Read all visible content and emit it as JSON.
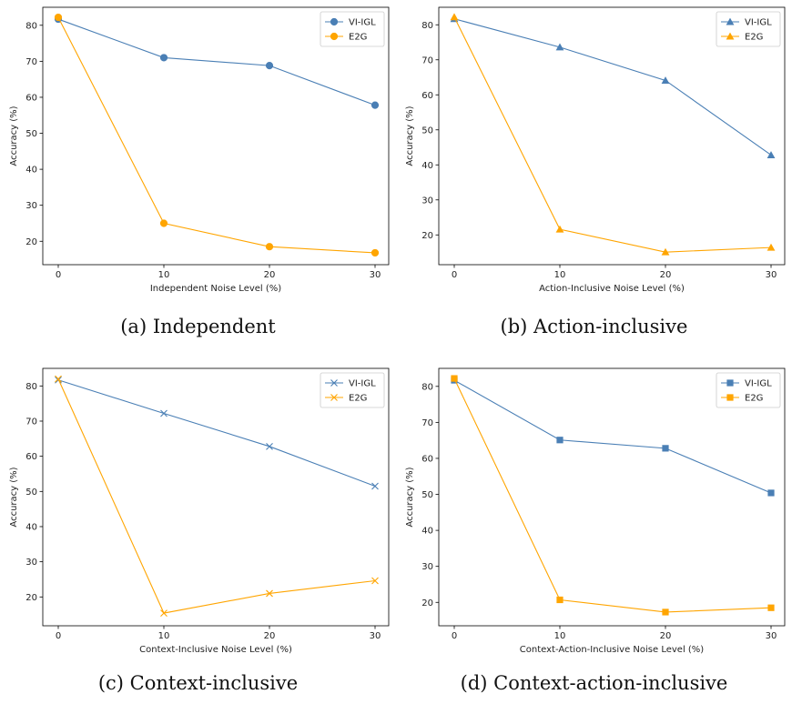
{
  "chart_data": [
    {
      "type": "line",
      "caption": "(a) Independent",
      "xlabel": "Independent Noise Level (%)",
      "ylabel": "Accuracy (%)",
      "x": [
        0,
        10,
        20,
        30
      ],
      "xticks": [
        "0",
        "10",
        "20",
        "30"
      ],
      "yticks": [
        "20",
        "30",
        "40",
        "50",
        "60",
        "70",
        "80"
      ],
      "ylim": [
        13.5,
        85
      ],
      "marker": "circle",
      "legend_position": "top-right",
      "series": [
        {
          "name": "VI-IGL",
          "color": "#4a7fb5",
          "values": [
            81.7,
            71.0,
            68.8,
            57.8
          ]
        },
        {
          "name": "E2G",
          "color": "#ffa500",
          "values": [
            82.2,
            25.0,
            18.5,
            16.8
          ]
        }
      ]
    },
    {
      "type": "line",
      "caption": "(b) Action-inclusive",
      "xlabel": "Action-Inclusive Noise Level (%)",
      "ylabel": "Accuracy (%)",
      "x": [
        0,
        10,
        20,
        30
      ],
      "xticks": [
        "0",
        "10",
        "20",
        "30"
      ],
      "yticks": [
        "20",
        "30",
        "40",
        "50",
        "60",
        "70",
        "80"
      ],
      "ylim": [
        11.5,
        85
      ],
      "marker": "triangle",
      "legend_position": "top-right",
      "series": [
        {
          "name": "VI-IGL",
          "color": "#4a7fb5",
          "values": [
            81.7,
            73.6,
            64.1,
            42.8
          ]
        },
        {
          "name": "E2G",
          "color": "#ffa500",
          "values": [
            82.2,
            21.6,
            15.1,
            16.4
          ]
        }
      ]
    },
    {
      "type": "line",
      "caption": "(c) Context-inclusive",
      "xlabel": "Context-Inclusive Noise Level (%)",
      "ylabel": "Accuracy (%)",
      "x": [
        0,
        10,
        20,
        30
      ],
      "xticks": [
        "0",
        "10",
        "20",
        "30"
      ],
      "yticks": [
        "20",
        "30",
        "40",
        "50",
        "60",
        "70",
        "80"
      ],
      "ylim": [
        11.8,
        85
      ],
      "marker": "x",
      "legend_position": "top-right",
      "series": [
        {
          "name": "VI-IGL",
          "color": "#4a7fb5",
          "values": [
            81.7,
            72.2,
            62.8,
            51.5
          ]
        },
        {
          "name": "E2G",
          "color": "#ffa500",
          "values": [
            82.0,
            15.4,
            21.0,
            24.6
          ]
        }
      ]
    },
    {
      "type": "line",
      "caption": "(d) Context-action-inclusive",
      "xlabel": "Context-Action-Inclusive Noise Level (%)",
      "ylabel": "Accuracy (%)",
      "x": [
        0,
        10,
        20,
        30
      ],
      "xticks": [
        "0",
        "10",
        "20",
        "30"
      ],
      "yticks": [
        "20",
        "30",
        "40",
        "50",
        "60",
        "70",
        "80"
      ],
      "ylim": [
        13.5,
        85
      ],
      "marker": "square",
      "legend_position": "top-right",
      "series": [
        {
          "name": "VI-IGL",
          "color": "#4a7fb5",
          "values": [
            81.7,
            65.1,
            62.8,
            50.4
          ]
        },
        {
          "name": "E2G",
          "color": "#ffa500",
          "values": [
            82.2,
            20.7,
            17.3,
            18.5
          ]
        }
      ]
    }
  ]
}
